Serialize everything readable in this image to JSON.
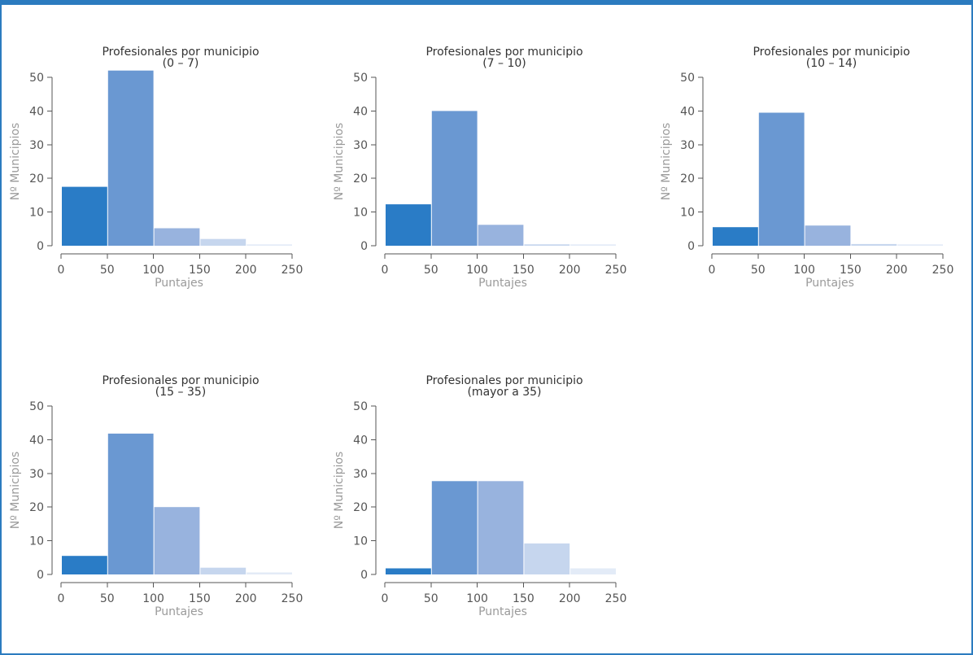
{
  "chart_data": [
    {
      "type": "bar",
      "title": "Profesionales por municipio",
      "subtitle": "(0 – 7)",
      "xlabel": "Puntajes",
      "ylabel": "Nº Municipios",
      "bins": [
        [
          0,
          50
        ],
        [
          50,
          100
        ],
        [
          100,
          150
        ],
        [
          150,
          200
        ],
        [
          200,
          250
        ]
      ],
      "values": [
        17.5,
        52,
        5.2,
        2.0,
        0.4
      ],
      "xticks": [
        0,
        50,
        100,
        150,
        200,
        250
      ],
      "yticks": [
        0,
        10,
        20,
        30,
        40,
        50
      ],
      "xlim": [
        0,
        250
      ],
      "ylim": [
        0,
        50
      ]
    },
    {
      "type": "bar",
      "title": "Profesionales por municipio",
      "subtitle": "(7 – 10)",
      "xlabel": "Puntajes",
      "ylabel": "Nº Municipios",
      "bins": [
        [
          0,
          50
        ],
        [
          50,
          100
        ],
        [
          100,
          150
        ],
        [
          150,
          200
        ],
        [
          200,
          250
        ]
      ],
      "values": [
        12.3,
        40,
        6.2,
        0.4,
        0.4
      ],
      "xticks": [
        0,
        50,
        100,
        150,
        200,
        250
      ],
      "yticks": [
        0,
        10,
        20,
        30,
        40,
        50
      ],
      "xlim": [
        0,
        250
      ],
      "ylim": [
        0,
        50
      ]
    },
    {
      "type": "bar",
      "title": "Profesionales por municipio",
      "subtitle": "(10 – 14)",
      "xlabel": "Puntajes",
      "ylabel": "Nº Municipios",
      "bins": [
        [
          0,
          50
        ],
        [
          50,
          100
        ],
        [
          100,
          150
        ],
        [
          150,
          200
        ],
        [
          200,
          250
        ]
      ],
      "values": [
        5.5,
        39.5,
        6.0,
        0.5,
        0.4
      ],
      "xticks": [
        0,
        50,
        100,
        150,
        200,
        250
      ],
      "yticks": [
        0,
        10,
        20,
        30,
        40,
        50
      ],
      "xlim": [
        0,
        250
      ],
      "ylim": [
        0,
        50
      ]
    },
    {
      "type": "bar",
      "title": "Profesionales por municipio",
      "subtitle": "(15 – 35)",
      "xlabel": "Puntajes",
      "ylabel": "Nº Municipios",
      "bins": [
        [
          0,
          50
        ],
        [
          50,
          100
        ],
        [
          100,
          150
        ],
        [
          150,
          200
        ],
        [
          200,
          250
        ]
      ],
      "values": [
        5.5,
        41.8,
        20.0,
        2.0,
        0.6
      ],
      "xticks": [
        0,
        50,
        100,
        150,
        200,
        250
      ],
      "yticks": [
        0,
        10,
        20,
        30,
        40,
        50
      ],
      "xlim": [
        0,
        250
      ],
      "ylim": [
        0,
        50
      ]
    },
    {
      "type": "bar",
      "title": "Profesionales por municipio",
      "subtitle": "(mayor a 35)",
      "xlabel": "Puntajes",
      "ylabel": "Nº Municipios",
      "bins": [
        [
          0,
          50
        ],
        [
          50,
          100
        ],
        [
          100,
          150
        ],
        [
          150,
          200
        ],
        [
          200,
          250
        ]
      ],
      "values": [
        1.8,
        27.7,
        27.7,
        9.2,
        1.8
      ],
      "xticks": [
        0,
        50,
        100,
        150,
        200,
        250
      ],
      "yticks": [
        0,
        10,
        20,
        30,
        40,
        50
      ],
      "xlim": [
        0,
        250
      ],
      "ylim": [
        0,
        50
      ]
    }
  ],
  "colors": {
    "frame": "#2b7bbf",
    "bars": [
      "#2a7cc6",
      "#6a98d2",
      "#98b3de",
      "#c6d6ee",
      "#e3ebf7"
    ]
  }
}
